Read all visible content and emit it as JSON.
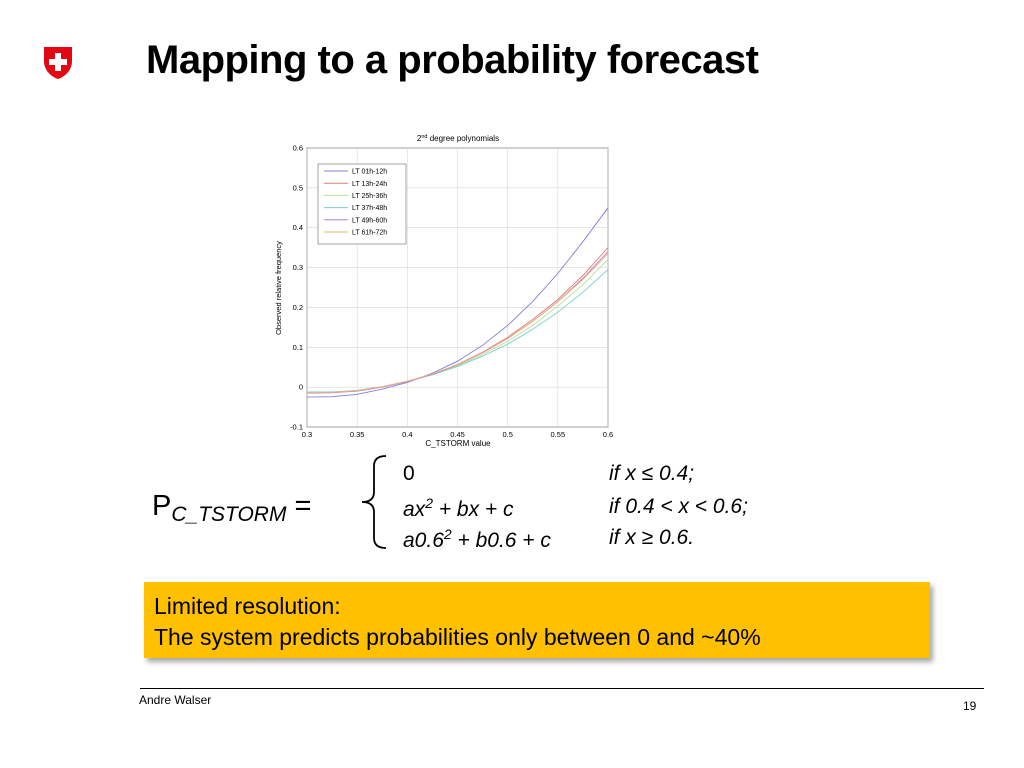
{
  "slide": {
    "title": "Mapping to a probability forecast",
    "author": "Andre Walser",
    "page_number": "19"
  },
  "formula": {
    "lhs_main": "P",
    "lhs_sub": "C_TSTORM",
    "lhs_eq": " =",
    "rows": [
      {
        "expr_a": "0",
        "expr_sup": "",
        "expr_b": "",
        "cond": "if x ≤ 0.4;"
      },
      {
        "expr_a": "ax",
        "expr_sup": "2",
        "expr_b": " + bx + c",
        "cond": "if 0.4 < x < 0.6;"
      },
      {
        "expr_a": "a0.6",
        "expr_sup": "2",
        "expr_b": " + b0.6 + c",
        "cond": "if x ≥ 0.6."
      }
    ]
  },
  "note": {
    "line1": "Limited resolution:",
    "line2": "The system predicts probabilities only between 0 and ~40%",
    "color": "#ffc000"
  },
  "chart_data": {
    "type": "line",
    "title_main": "2",
    "title_sup": "nd",
    "title_rest": " degree polynomials",
    "xlabel": "C_TSTORM value",
    "ylabel": "Observed relative frequency",
    "xlim": [
      0.3,
      0.6
    ],
    "ylim": [
      -0.1,
      0.6
    ],
    "xticks": [
      "0.3",
      "0.35",
      "0.4",
      "0.45",
      "0.5",
      "0.55",
      "0.6"
    ],
    "yticks": [
      "-0.1",
      "0",
      "0.1",
      "0.2",
      "0.3",
      "0.4",
      "0.5",
      "0.6"
    ],
    "grid": true,
    "legend_position": "top-left",
    "x": [
      0.3,
      0.325,
      0.35,
      0.375,
      0.4,
      0.425,
      0.45,
      0.475,
      0.5,
      0.525,
      0.55,
      0.575,
      0.6
    ],
    "series": [
      {
        "name": "LT 01h-12h",
        "color": "#7f7fd9",
        "values": [
          -0.025,
          -0.024,
          -0.018,
          -0.005,
          0.012,
          0.035,
          0.065,
          0.105,
          0.155,
          0.215,
          0.285,
          0.365,
          0.45
        ]
      },
      {
        "name": "LT 13h-24h",
        "color": "#e07f6e",
        "values": [
          -0.015,
          -0.014,
          -0.01,
          0.0,
          0.014,
          0.032,
          0.057,
          0.088,
          0.125,
          0.17,
          0.22,
          0.28,
          0.35
        ]
      },
      {
        "name": "LT 25h-36h",
        "color": "#bedd9a",
        "values": [
          -0.013,
          -0.013,
          -0.009,
          0.001,
          0.015,
          0.032,
          0.054,
          0.082,
          0.115,
          0.155,
          0.203,
          0.257,
          0.32
        ]
      },
      {
        "name": "LT 37h-48h",
        "color": "#6fd4c4",
        "values": [
          -0.012,
          -0.012,
          -0.008,
          0.001,
          0.015,
          0.031,
          0.052,
          0.078,
          0.108,
          0.145,
          0.188,
          0.238,
          0.295
        ]
      },
      {
        "name": "LT 49h-60h",
        "color": "#b884d8",
        "values": [
          -0.015,
          -0.014,
          -0.01,
          0.0,
          0.014,
          0.032,
          0.056,
          0.086,
          0.122,
          0.165,
          0.215,
          0.273,
          0.34
        ]
      },
      {
        "name": "LT 61h-72h",
        "color": "#f2b07a",
        "values": [
          -0.014,
          -0.013,
          -0.009,
          0.001,
          0.015,
          0.033,
          0.057,
          0.087,
          0.123,
          0.165,
          0.214,
          0.27,
          0.335
        ]
      }
    ]
  }
}
